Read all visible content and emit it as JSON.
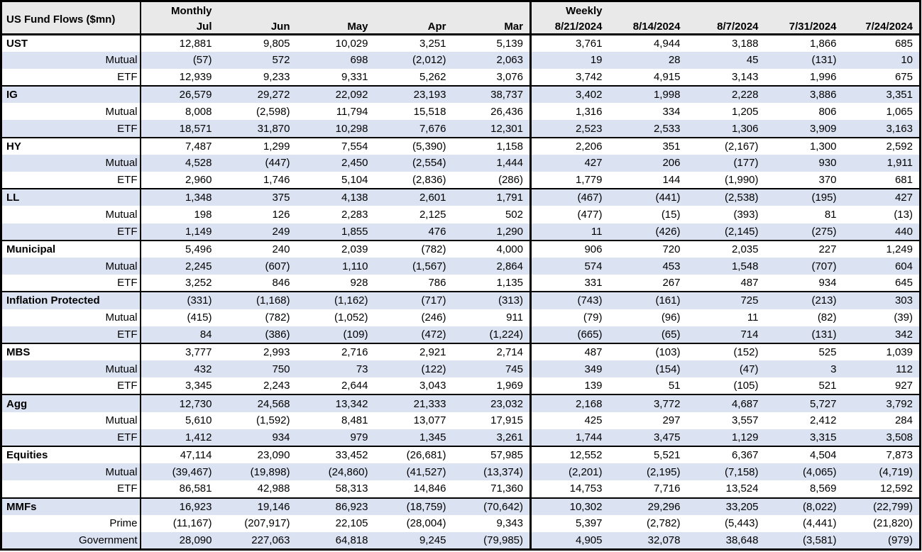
{
  "style": {
    "stripe_bg": "#dbe2f2",
    "header_bg": "#e9e9e9",
    "border_color": "#000000"
  },
  "table": {
    "title": "US Fund Flows ($mn)",
    "sections": [
      {
        "label": "Monthly",
        "columns": [
          "Jul",
          "Jun",
          "May",
          "Apr",
          "Mar"
        ]
      },
      {
        "label": "Weekly",
        "columns": [
          "8/21/2024",
          "8/14/2024",
          "8/7/2024",
          "7/31/2024",
          "7/24/2024"
        ]
      }
    ],
    "groups": [
      {
        "rows": [
          {
            "label": "UST",
            "monthly": [
              "12,881",
              "9,805",
              "10,029",
              "3,251",
              "5,139"
            ],
            "weekly": [
              "3,761",
              "4,944",
              "3,188",
              "1,866",
              "685"
            ]
          },
          {
            "label": "Mutual",
            "monthly": [
              "(57)",
              "572",
              "698",
              "(2,012)",
              "2,063"
            ],
            "weekly": [
              "19",
              "28",
              "45",
              "(131)",
              "10"
            ]
          },
          {
            "label": "ETF",
            "monthly": [
              "12,939",
              "9,233",
              "9,331",
              "5,262",
              "3,076"
            ],
            "weekly": [
              "3,742",
              "4,915",
              "3,143",
              "1,996",
              "675"
            ]
          }
        ]
      },
      {
        "rows": [
          {
            "label": "IG",
            "monthly": [
              "26,579",
              "29,272",
              "22,092",
              "23,193",
              "38,737"
            ],
            "weekly": [
              "3,402",
              "1,998",
              "2,228",
              "3,886",
              "3,351"
            ]
          },
          {
            "label": "Mutual",
            "monthly": [
              "8,008",
              "(2,598)",
              "11,794",
              "15,518",
              "26,436"
            ],
            "weekly": [
              "1,316",
              "334",
              "1,205",
              "806",
              "1,065"
            ]
          },
          {
            "label": "ETF",
            "monthly": [
              "18,571",
              "31,870",
              "10,298",
              "7,676",
              "12,301"
            ],
            "weekly": [
              "2,523",
              "2,533",
              "1,306",
              "3,909",
              "3,163"
            ]
          }
        ]
      },
      {
        "rows": [
          {
            "label": "HY",
            "monthly": [
              "7,487",
              "1,299",
              "7,554",
              "(5,390)",
              "1,158"
            ],
            "weekly": [
              "2,206",
              "351",
              "(2,167)",
              "1,300",
              "2,592"
            ]
          },
          {
            "label": "Mutual",
            "monthly": [
              "4,528",
              "(447)",
              "2,450",
              "(2,554)",
              "1,444"
            ],
            "weekly": [
              "427",
              "206",
              "(177)",
              "930",
              "1,911"
            ]
          },
          {
            "label": "ETF",
            "monthly": [
              "2,960",
              "1,746",
              "5,104",
              "(2,836)",
              "(286)"
            ],
            "weekly": [
              "1,779",
              "144",
              "(1,990)",
              "370",
              "681"
            ]
          }
        ]
      },
      {
        "rows": [
          {
            "label": "LL",
            "monthly": [
              "1,348",
              "375",
              "4,138",
              "2,601",
              "1,791"
            ],
            "weekly": [
              "(467)",
              "(441)",
              "(2,538)",
              "(195)",
              "427"
            ]
          },
          {
            "label": "Mutual",
            "monthly": [
              "198",
              "126",
              "2,283",
              "2,125",
              "502"
            ],
            "weekly": [
              "(477)",
              "(15)",
              "(393)",
              "81",
              "(13)"
            ]
          },
          {
            "label": "ETF",
            "monthly": [
              "1,149",
              "249",
              "1,855",
              "476",
              "1,290"
            ],
            "weekly": [
              "11",
              "(426)",
              "(2,145)",
              "(275)",
              "440"
            ]
          }
        ]
      },
      {
        "rows": [
          {
            "label": "Municipal",
            "monthly": [
              "5,496",
              "240",
              "2,039",
              "(782)",
              "4,000"
            ],
            "weekly": [
              "906",
              "720",
              "2,035",
              "227",
              "1,249"
            ]
          },
          {
            "label": "Mutual",
            "monthly": [
              "2,245",
              "(607)",
              "1,110",
              "(1,567)",
              "2,864"
            ],
            "weekly": [
              "574",
              "453",
              "1,548",
              "(707)",
              "604"
            ]
          },
          {
            "label": "ETF",
            "monthly": [
              "3,252",
              "846",
              "928",
              "786",
              "1,135"
            ],
            "weekly": [
              "331",
              "267",
              "487",
              "934",
              "645"
            ]
          }
        ]
      },
      {
        "rows": [
          {
            "label": "Inflation Protected",
            "monthly": [
              "(331)",
              "(1,168)",
              "(1,162)",
              "(717)",
              "(313)"
            ],
            "weekly": [
              "(743)",
              "(161)",
              "725",
              "(213)",
              "303"
            ]
          },
          {
            "label": "Mutual",
            "monthly": [
              "(415)",
              "(782)",
              "(1,052)",
              "(246)",
              "911"
            ],
            "weekly": [
              "(79)",
              "(96)",
              "11",
              "(82)",
              "(39)"
            ]
          },
          {
            "label": "ETF",
            "monthly": [
              "84",
              "(386)",
              "(109)",
              "(472)",
              "(1,224)"
            ],
            "weekly": [
              "(665)",
              "(65)",
              "714",
              "(131)",
              "342"
            ]
          }
        ]
      },
      {
        "rows": [
          {
            "label": "MBS",
            "monthly": [
              "3,777",
              "2,993",
              "2,716",
              "2,921",
              "2,714"
            ],
            "weekly": [
              "487",
              "(103)",
              "(152)",
              "525",
              "1,039"
            ]
          },
          {
            "label": "Mutual",
            "monthly": [
              "432",
              "750",
              "73",
              "(122)",
              "745"
            ],
            "weekly": [
              "349",
              "(154)",
              "(47)",
              "3",
              "112"
            ]
          },
          {
            "label": "ETF",
            "monthly": [
              "3,345",
              "2,243",
              "2,644",
              "3,043",
              "1,969"
            ],
            "weekly": [
              "139",
              "51",
              "(105)",
              "521",
              "927"
            ]
          }
        ]
      },
      {
        "rows": [
          {
            "label": "Agg",
            "monthly": [
              "12,730",
              "24,568",
              "13,342",
              "21,333",
              "23,032"
            ],
            "weekly": [
              "2,168",
              "3,772",
              "4,687",
              "5,727",
              "3,792"
            ]
          },
          {
            "label": "Mutual",
            "monthly": [
              "5,610",
              "(1,592)",
              "8,481",
              "13,077",
              "17,915"
            ],
            "weekly": [
              "425",
              "297",
              "3,557",
              "2,412",
              "284"
            ]
          },
          {
            "label": "ETF",
            "monthly": [
              "1,412",
              "934",
              "979",
              "1,345",
              "3,261"
            ],
            "weekly": [
              "1,744",
              "3,475",
              "1,129",
              "3,315",
              "3,508"
            ]
          }
        ]
      },
      {
        "rows": [
          {
            "label": "Equities",
            "monthly": [
              "47,114",
              "23,090",
              "33,452",
              "(26,681)",
              "57,985"
            ],
            "weekly": [
              "12,552",
              "5,521",
              "6,367",
              "4,504",
              "7,873"
            ]
          },
          {
            "label": "Mutual",
            "monthly": [
              "(39,467)",
              "(19,898)",
              "(24,860)",
              "(41,527)",
              "(13,374)"
            ],
            "weekly": [
              "(2,201)",
              "(2,195)",
              "(7,158)",
              "(4,065)",
              "(4,719)"
            ]
          },
          {
            "label": "ETF",
            "monthly": [
              "86,581",
              "42,988",
              "58,313",
              "14,846",
              "71,360"
            ],
            "weekly": [
              "14,753",
              "7,716",
              "13,524",
              "8,569",
              "12,592"
            ]
          }
        ]
      },
      {
        "rows": [
          {
            "label": "MMFs",
            "monthly": [
              "16,923",
              "19,146",
              "86,923",
              "(18,759)",
              "(70,642)"
            ],
            "weekly": [
              "10,302",
              "29,296",
              "33,205",
              "(8,022)",
              "(22,799)"
            ]
          },
          {
            "label": "Prime",
            "monthly": [
              "(11,167)",
              "(207,917)",
              "22,105",
              "(28,004)",
              "9,343"
            ],
            "weekly": [
              "5,397",
              "(2,782)",
              "(5,443)",
              "(4,441)",
              "(21,820)"
            ]
          },
          {
            "label": "Government",
            "monthly": [
              "28,090",
              "227,063",
              "64,818",
              "9,245",
              "(79,985)"
            ],
            "weekly": [
              "4,905",
              "32,078",
              "38,648",
              "(3,581)",
              "(979)"
            ]
          }
        ]
      }
    ]
  }
}
